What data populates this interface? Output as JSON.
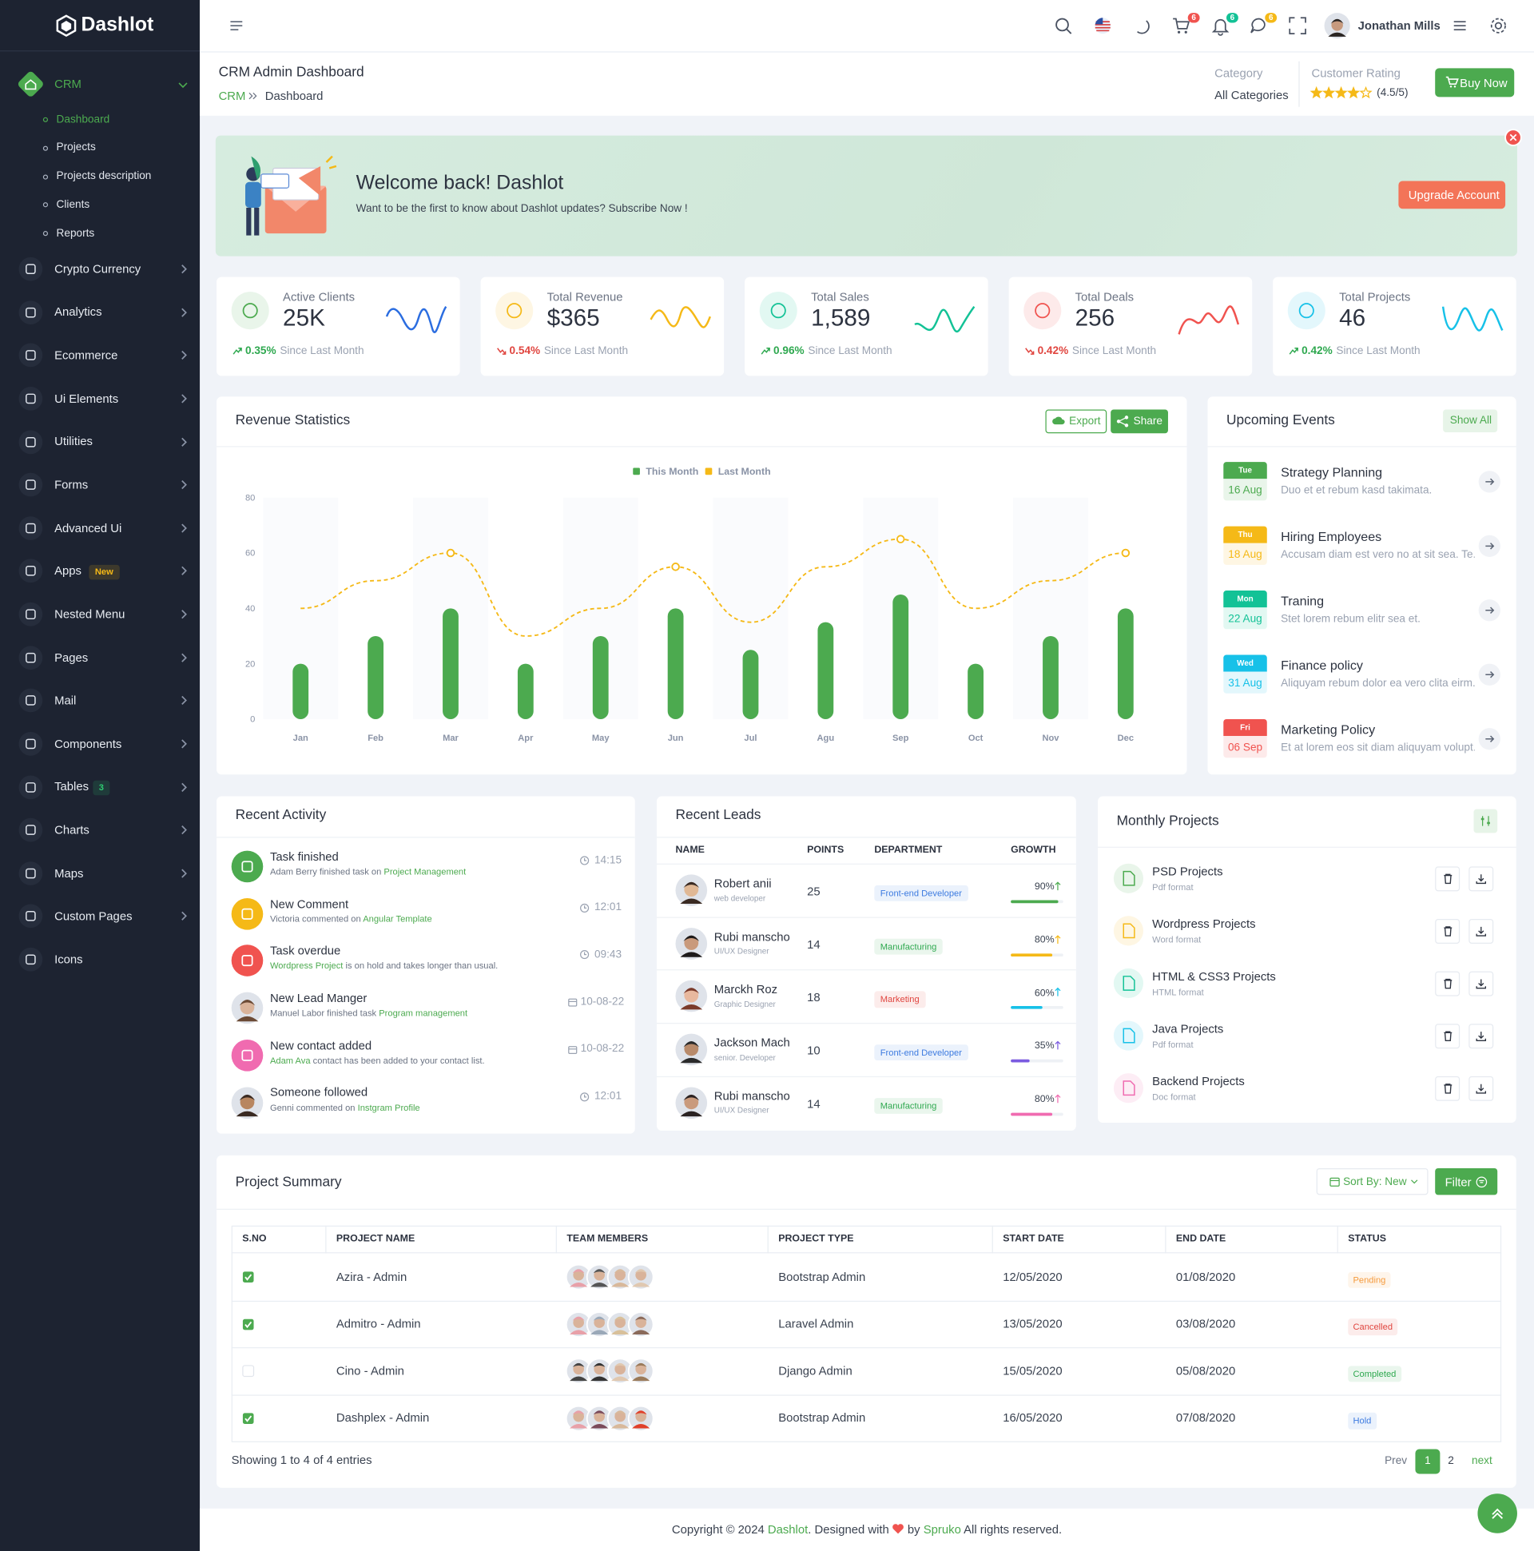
{
  "brand": "Dashlot",
  "sidebar": {
    "active": "CRM",
    "submenu": [
      "Dashboard",
      "Projects",
      "Projects description",
      "Clients",
      "Reports"
    ],
    "items": [
      {
        "label": "Crypto Currency"
      },
      {
        "label": "Analytics"
      },
      {
        "label": "Ecommerce"
      },
      {
        "label": "Ui Elements"
      },
      {
        "label": "Utilities"
      },
      {
        "label": "Forms"
      },
      {
        "label": "Advanced Ui"
      },
      {
        "label": "Apps",
        "badge": "New"
      },
      {
        "label": "Nested Menu"
      },
      {
        "label": "Pages"
      },
      {
        "label": "Mail"
      },
      {
        "label": "Components"
      },
      {
        "label": "Tables",
        "badge": "3"
      },
      {
        "label": "Charts"
      },
      {
        "label": "Maps"
      },
      {
        "label": "Custom Pages"
      },
      {
        "label": "Icons"
      }
    ]
  },
  "header": {
    "user": "Jonathan Mills",
    "cart_badge": "6",
    "notification_badge": "6",
    "message_badge": "6"
  },
  "page_header": {
    "title": "CRM Admin Dashboard",
    "breadcrumb": [
      "CRM",
      "Dashboard"
    ],
    "category_label": "Category",
    "category_value": "All Categories",
    "rating_label": "Customer Rating",
    "rating": "(4.5/5)",
    "button": "Buy Now"
  },
  "banner": {
    "title": "Welcome back! Dashlot",
    "text": "Want to be the first to know about Dashlot updates? Subscribe Now !",
    "button": "Upgrade Account"
  },
  "stats": [
    {
      "label": "Active Clients",
      "value": "25K",
      "change": "0.35%",
      "trend": "up",
      "note": "Since Last Month",
      "color": "#4caa4f",
      "spark": "#2b6de0"
    },
    {
      "label": "Total Revenue",
      "value": "$365",
      "change": "0.54%",
      "trend": "down",
      "note": "Since Last Month",
      "color": "#f5b917",
      "spark": "#f5b917"
    },
    {
      "label": "Total Sales",
      "value": "1,589",
      "change": "0.96%",
      "trend": "up",
      "note": "Since Last Month",
      "color": "#13c296",
      "spark": "#13c296"
    },
    {
      "label": "Total Deals",
      "value": "256",
      "change": "0.42%",
      "trend": "down",
      "note": "Since Last Month",
      "color": "#f0534f",
      "spark": "#f0534f"
    },
    {
      "label": "Total Projects",
      "value": "46",
      "change": "0.42%",
      "trend": "up",
      "note": "Since Last Month",
      "color": "#17c1e8",
      "spark": "#17c1e8"
    }
  ],
  "revenue": {
    "title": "Revenue Statistics",
    "export": "Export",
    "share": "Share"
  },
  "chart_data": {
    "type": "bar",
    "categories": [
      "Jan",
      "Feb",
      "Mar",
      "Apr",
      "May",
      "Jun",
      "Jul",
      "Agu",
      "Sep",
      "Oct",
      "Nov",
      "Dec"
    ],
    "series": [
      {
        "name": "This Month",
        "type": "bar",
        "color": "#4caa4f",
        "values": [
          20,
          30,
          40,
          20,
          30,
          40,
          25,
          35,
          45,
          20,
          30,
          40
        ]
      },
      {
        "name": "Last Month",
        "type": "line",
        "color": "#f5b917",
        "values": [
          40,
          50,
          60,
          30,
          40,
          55,
          35,
          55,
          65,
          40,
          50,
          60
        ]
      }
    ],
    "ylim": [
      0,
      80
    ],
    "yticks": [
      0,
      20,
      40,
      60,
      80
    ]
  },
  "events": {
    "title": "Upcoming Events",
    "button": "Show All",
    "items": [
      {
        "day": "Tue",
        "date": "16 Aug",
        "title": "Strategy Planning",
        "text": "Duo et et rebum kasd takimata.",
        "color": "#4caa4f"
      },
      {
        "day": "Thu",
        "date": "18 Aug",
        "title": "Hiring Employees",
        "text": "Accusam diam est vero no at sit sea. Te...",
        "color": "#f5b917"
      },
      {
        "day": "Mon",
        "date": "22 Aug",
        "title": "Traning",
        "text": "Stet lorem rebum elitr sea et.",
        "color": "#13c296"
      },
      {
        "day": "Wed",
        "date": "31 Aug",
        "title": "Finance policy",
        "text": "Aliquyam rebum dolor ea vero clita eirm...",
        "color": "#17c1e8"
      },
      {
        "day": "Fri",
        "date": "06 Sep",
        "title": "Marketing Policy",
        "text": "Et at lorem eos sit diam aliquyam volupt...",
        "color": "#f0534f"
      }
    ]
  },
  "activity": {
    "title": "Recent Activity",
    "items": [
      {
        "title": "Task finished",
        "parts": [
          {
            "t": "Adam Berry finished task on"
          },
          {
            "t": "Project Management",
            "link": true
          }
        ],
        "time": "14:15",
        "color": "#4caa4f"
      },
      {
        "title": "New Comment",
        "parts": [
          {
            "t": "Victoria commented on"
          },
          {
            "t": "Angular Template",
            "link": true
          }
        ],
        "time": "12:01",
        "color": "#f5b917"
      },
      {
        "title": "Task overdue",
        "parts": [
          {
            "t": "Wordpress Project",
            "link": true
          },
          {
            "t": "is on hold and takes longer than usual."
          }
        ],
        "time": "09:43",
        "color": "#f0534f"
      },
      {
        "title": "New Lead Manger",
        "parts": [
          {
            "t": "Manuel Labor finished task"
          },
          {
            "t": "Program management",
            "link": true
          }
        ],
        "time": "10-08-22",
        "avatar": true
      },
      {
        "title": "New contact added",
        "parts": [
          {
            "t": "Adam Ava",
            "link": true
          },
          {
            "t": "contact has been added to your contact list."
          }
        ],
        "time": "10-08-22",
        "color": "#f06bb0"
      },
      {
        "title": "Someone followed",
        "parts": [
          {
            "t": "Genni commented on"
          },
          {
            "t": "Instgram Profile",
            "link": true
          }
        ],
        "time": "12:01",
        "avatar": true
      }
    ]
  },
  "leads": {
    "title": "Recent Leads",
    "columns": [
      "NAME",
      "POINTS",
      "DEPARTMENT",
      "GROWTH"
    ],
    "rows": [
      {
        "name": "Robert anii",
        "role": "web developer",
        "points": 25,
        "department": "Front-end Developer",
        "dept_color": "#3d7be0",
        "growth": 90,
        "growth_label": "90%",
        "color": "#4caa4f"
      },
      {
        "name": "Rubi manscho",
        "role": "UI/UX Designer",
        "points": 14,
        "department": "Manufacturing",
        "dept_color": "#2ea84f",
        "growth": 80,
        "growth_label": "80%",
        "color": "#f5b917"
      },
      {
        "name": "Marckh Roz",
        "role": "Graphic Designer",
        "points": 18,
        "department": "Marketing",
        "dept_color": "#e0453f",
        "growth": 60,
        "growth_label": "60%",
        "color": "#17c1e8"
      },
      {
        "name": "Jackson Mach",
        "role": "senior. Developer",
        "points": 10,
        "department": "Front-end Developer",
        "dept_color": "#3d7be0",
        "growth": 35,
        "growth_label": "35%",
        "color": "#7b5be0"
      },
      {
        "name": "Rubi manscho",
        "role": "UI/UX Designer",
        "points": 14,
        "department": "Manufacturing",
        "dept_color": "#2ea84f",
        "growth": 80,
        "growth_label": "80%",
        "color": "#f06bb0"
      }
    ]
  },
  "monthly": {
    "title": "Monthly Projects",
    "items": [
      {
        "name": "PSD Projects",
        "format": "Pdf format",
        "color": "#4caa4f"
      },
      {
        "name": "Wordpress Projects",
        "format": "Word format",
        "color": "#f5b917"
      },
      {
        "name": "HTML & CSS3 Projects",
        "format": "HTML format",
        "color": "#13c296"
      },
      {
        "name": "Java Projects",
        "format": "Pdf format",
        "color": "#17c1e8"
      },
      {
        "name": "Backend Projects",
        "format": "Doc format",
        "color": "#f06bb0"
      }
    ]
  },
  "summary": {
    "title": "Project Summary",
    "sort": "Sort By: New",
    "filter": "Filter",
    "columns": [
      "S.NO",
      "PROJECT NAME",
      "TEAM MEMBERS",
      "PROJECT TYPE",
      "START DATE",
      "END DATE",
      "STATUS"
    ],
    "rows": [
      {
        "checked": true,
        "name": "Azira - Admin",
        "type": "Bootstrap Admin",
        "start": "12/05/2020",
        "end": "01/08/2020",
        "status": "Pending",
        "status_color": "#f59a3c"
      },
      {
        "checked": true,
        "name": "Admitro - Admin",
        "type": "Laravel Admin",
        "start": "13/05/2020",
        "end": "03/08/2020",
        "status": "Cancelled",
        "status_color": "#e0453f"
      },
      {
        "checked": false,
        "name": "Cino - Admin",
        "type": "Django Admin",
        "start": "15/05/2020",
        "end": "05/08/2020",
        "status": "Completed",
        "status_color": "#2ea84f"
      },
      {
        "checked": true,
        "name": "Dashplex - Admin",
        "type": "Bootstrap Admin",
        "start": "16/05/2020",
        "end": "07/08/2020",
        "status": "Hold",
        "status_color": "#3d7be0"
      }
    ],
    "info": "Showing 1 to 4 of 4 entries",
    "pagination": [
      "Prev",
      "1",
      "2",
      "next"
    ]
  },
  "footer": {
    "copyright": "Copyright © 2024",
    "brand": "Dashlot",
    "designed": ". Designed with",
    "by": "by",
    "company": "Spruko",
    "rights": "All rights reserved."
  }
}
